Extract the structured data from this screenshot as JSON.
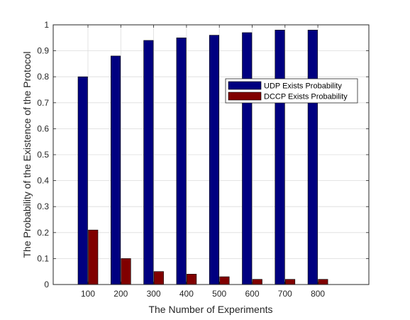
{
  "chart_data": {
    "type": "bar",
    "title": "",
    "xlabel": "The Number of Experiments",
    "ylabel": "The Probability of the Existence of the Protocol",
    "categories": [
      "100",
      "200",
      "300",
      "400",
      "500",
      "600",
      "700",
      "800"
    ],
    "series": [
      {
        "name": "UDP Exists Probability",
        "color": "#000080",
        "values": [
          0.8,
          0.88,
          0.94,
          0.95,
          0.96,
          0.97,
          0.98,
          0.98
        ]
      },
      {
        "name": "DCCP Exists Probability",
        "color": "#800000",
        "values": [
          0.21,
          0.1,
          0.05,
          0.04,
          0.03,
          0.02,
          0.02,
          0.02
        ]
      }
    ],
    "ylim": [
      0,
      1
    ],
    "yticks": [
      "0",
      "0.1",
      "0.2",
      "0.3",
      "0.4",
      "0.5",
      "0.6",
      "0.7",
      "0.8",
      "0.9",
      "1"
    ],
    "grid": true,
    "legend_position": "upper-right"
  }
}
